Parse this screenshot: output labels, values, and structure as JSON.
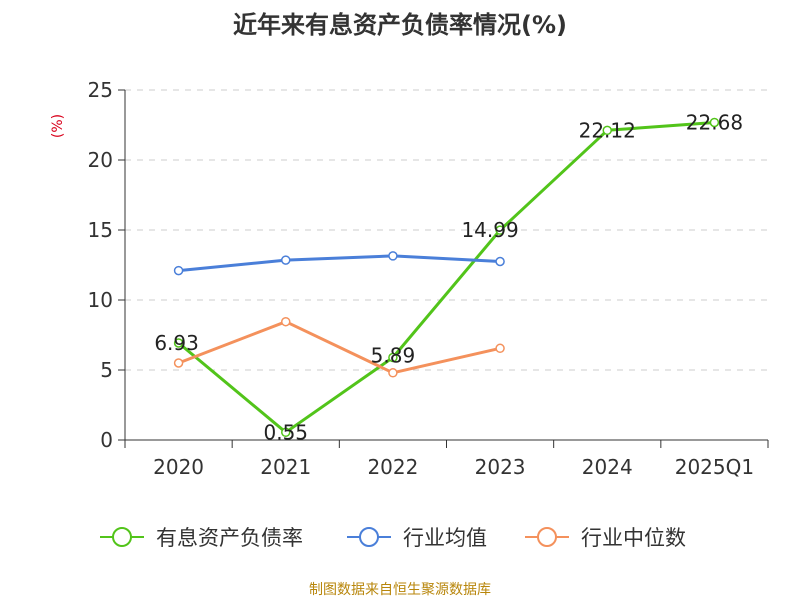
{
  "chart_data": {
    "type": "line",
    "title": "近年来有息资产负债率情况(%)",
    "ylabel": "(%)",
    "xlabel": "",
    "ylim": [
      0,
      25
    ],
    "yticks": [
      "0",
      "5",
      "10",
      "15",
      "20",
      "25"
    ],
    "categories": [
      "2020",
      "2021",
      "2022",
      "2023",
      "2024",
      "2025Q1"
    ],
    "grid": true,
    "legend_position": "bottom",
    "series": [
      {
        "name": "有息资产负债率",
        "color": "#52c41a",
        "values": [
          6.93,
          0.55,
          5.89,
          14.99,
          22.12,
          22.68
        ],
        "labels": [
          "6.93",
          "0.55",
          "5.89",
          "14.99",
          "22.12",
          "22.68"
        ]
      },
      {
        "name": "行业均值",
        "color": "#4a7fd9",
        "values": [
          12.1,
          12.85,
          13.15,
          12.75,
          null,
          null
        ]
      },
      {
        "name": "行业中位数",
        "color": "#f4915c",
        "values": [
          5.5,
          8.45,
          4.8,
          6.55,
          null,
          null
        ]
      }
    ]
  },
  "source": "制图数据来自恒生聚源数据库"
}
